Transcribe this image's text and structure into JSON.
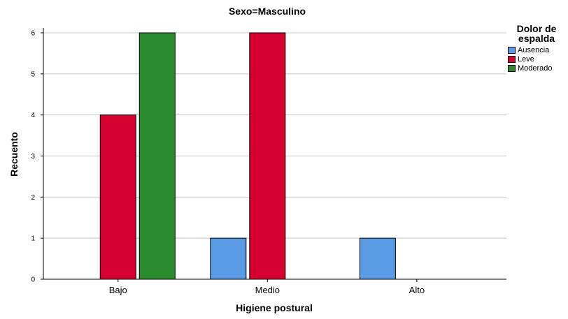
{
  "chart_data": {
    "type": "bar",
    "title": "Sexo=Masculino",
    "xlabel": "Higiene postural",
    "ylabel": "Recuento",
    "categories": [
      "Bajo",
      "Medio",
      "Alto"
    ],
    "ylim": [
      0,
      6
    ],
    "yticks": [
      "0",
      "1",
      "2",
      "3",
      "4",
      "5",
      "6"
    ],
    "grid": true,
    "legend_title": "Dolor de espalda",
    "legend_title_lines": [
      "Dolor de",
      "espalda"
    ],
    "legend_position": "right",
    "series": [
      {
        "name": "Ausencia",
        "color": "#5a9be6",
        "values": [
          0,
          1,
          1
        ]
      },
      {
        "name": "Leve",
        "color": "#d5002f",
        "values": [
          4,
          6,
          0
        ]
      },
      {
        "name": "Moderado",
        "color": "#2b8a2e",
        "values": [
          6,
          0,
          0
        ]
      }
    ]
  }
}
